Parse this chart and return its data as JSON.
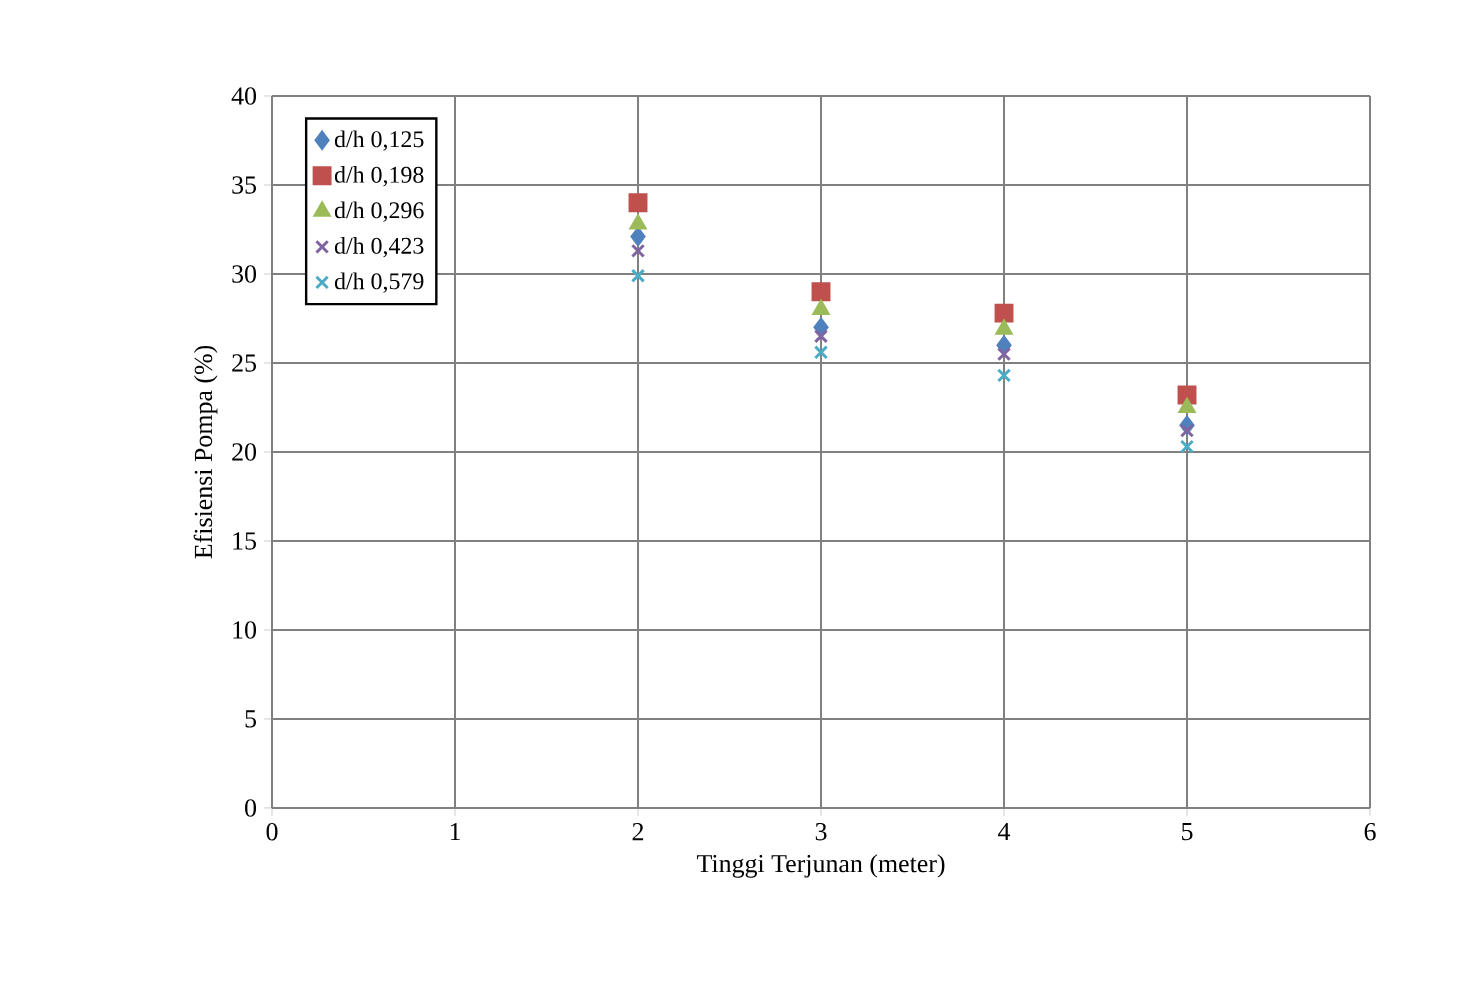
{
  "chart_data": {
    "type": "scatter",
    "xlabel": "Tinggi Terjunan (meter)",
    "ylabel": "Efisiensi Pompa (%)",
    "x": [
      2,
      3,
      4,
      5
    ],
    "xlim": [
      0,
      6
    ],
    "xticks": [
      0,
      1,
      2,
      3,
      4,
      5,
      6
    ],
    "ylim": [
      0,
      40
    ],
    "yticks": [
      0,
      5,
      10,
      15,
      20,
      25,
      30,
      35,
      40
    ],
    "grid": true,
    "legend": "top left",
    "series": [
      {
        "name": "d/h 0,125",
        "color": "#4f81bd",
        "marker": "diamond",
        "values": [
          32.1,
          27,
          26,
          21.5
        ]
      },
      {
        "name": "d/h 0,198",
        "color": "#c0504d",
        "marker": "square",
        "values": [
          34,
          29,
          27.8,
          23.2
        ]
      },
      {
        "name": "d/h 0,296",
        "color": "#9bbb59",
        "marker": "triangle",
        "values": [
          32.8,
          28,
          26.9,
          22.5
        ]
      },
      {
        "name": "d/h 0,423",
        "color": "#8064a2",
        "marker": "cross",
        "values": [
          31.3,
          26.5,
          25.5,
          21.2
        ]
      },
      {
        "name": "d/h 0,579",
        "color": "#4bacc6",
        "marker": "cross",
        "values": [
          29.9,
          25.6,
          24.3,
          20.3
        ]
      }
    ]
  }
}
